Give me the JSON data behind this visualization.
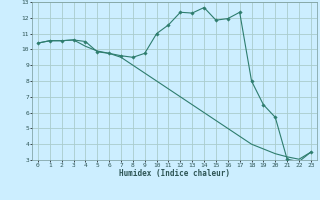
{
  "title": "",
  "xlabel": "Humidex (Indice chaleur)",
  "bg_color": "#cceeff",
  "grid_color": "#aacccc",
  "line_color": "#2e7d6e",
  "xlim": [
    -0.5,
    23.5
  ],
  "ylim": [
    3,
    13
  ],
  "xticks": [
    0,
    1,
    2,
    3,
    4,
    5,
    6,
    7,
    8,
    9,
    10,
    11,
    12,
    13,
    14,
    15,
    16,
    17,
    18,
    19,
    20,
    21,
    22,
    23
  ],
  "yticks": [
    3,
    4,
    5,
    6,
    7,
    8,
    9,
    10,
    11,
    12,
    13
  ],
  "line1_x": [
    0,
    1,
    2,
    3,
    4,
    5,
    6,
    7,
    8,
    9,
    10,
    11,
    12,
    13,
    14,
    15,
    16,
    17,
    18,
    19,
    20,
    21,
    22,
    23
  ],
  "line1_y": [
    10.4,
    10.55,
    10.55,
    10.6,
    10.5,
    9.85,
    9.75,
    9.6,
    9.5,
    9.75,
    11.0,
    11.55,
    12.35,
    12.3,
    12.65,
    11.85,
    11.95,
    12.35,
    8.0,
    6.5,
    5.7,
    3.05,
    2.9,
    3.5
  ],
  "line2_x": [
    0,
    1,
    2,
    3,
    4,
    5,
    6,
    7,
    8,
    9,
    10,
    11,
    12,
    13,
    14,
    15,
    16,
    17,
    18,
    19,
    20,
    21,
    22,
    23
  ],
  "line2_y": [
    10.4,
    10.55,
    10.55,
    10.6,
    10.2,
    9.9,
    9.75,
    9.5,
    9.0,
    8.5,
    8.0,
    7.5,
    7.0,
    6.5,
    6.0,
    5.5,
    5.0,
    4.5,
    4.0,
    3.7,
    3.4,
    3.2,
    3.05,
    3.5
  ]
}
